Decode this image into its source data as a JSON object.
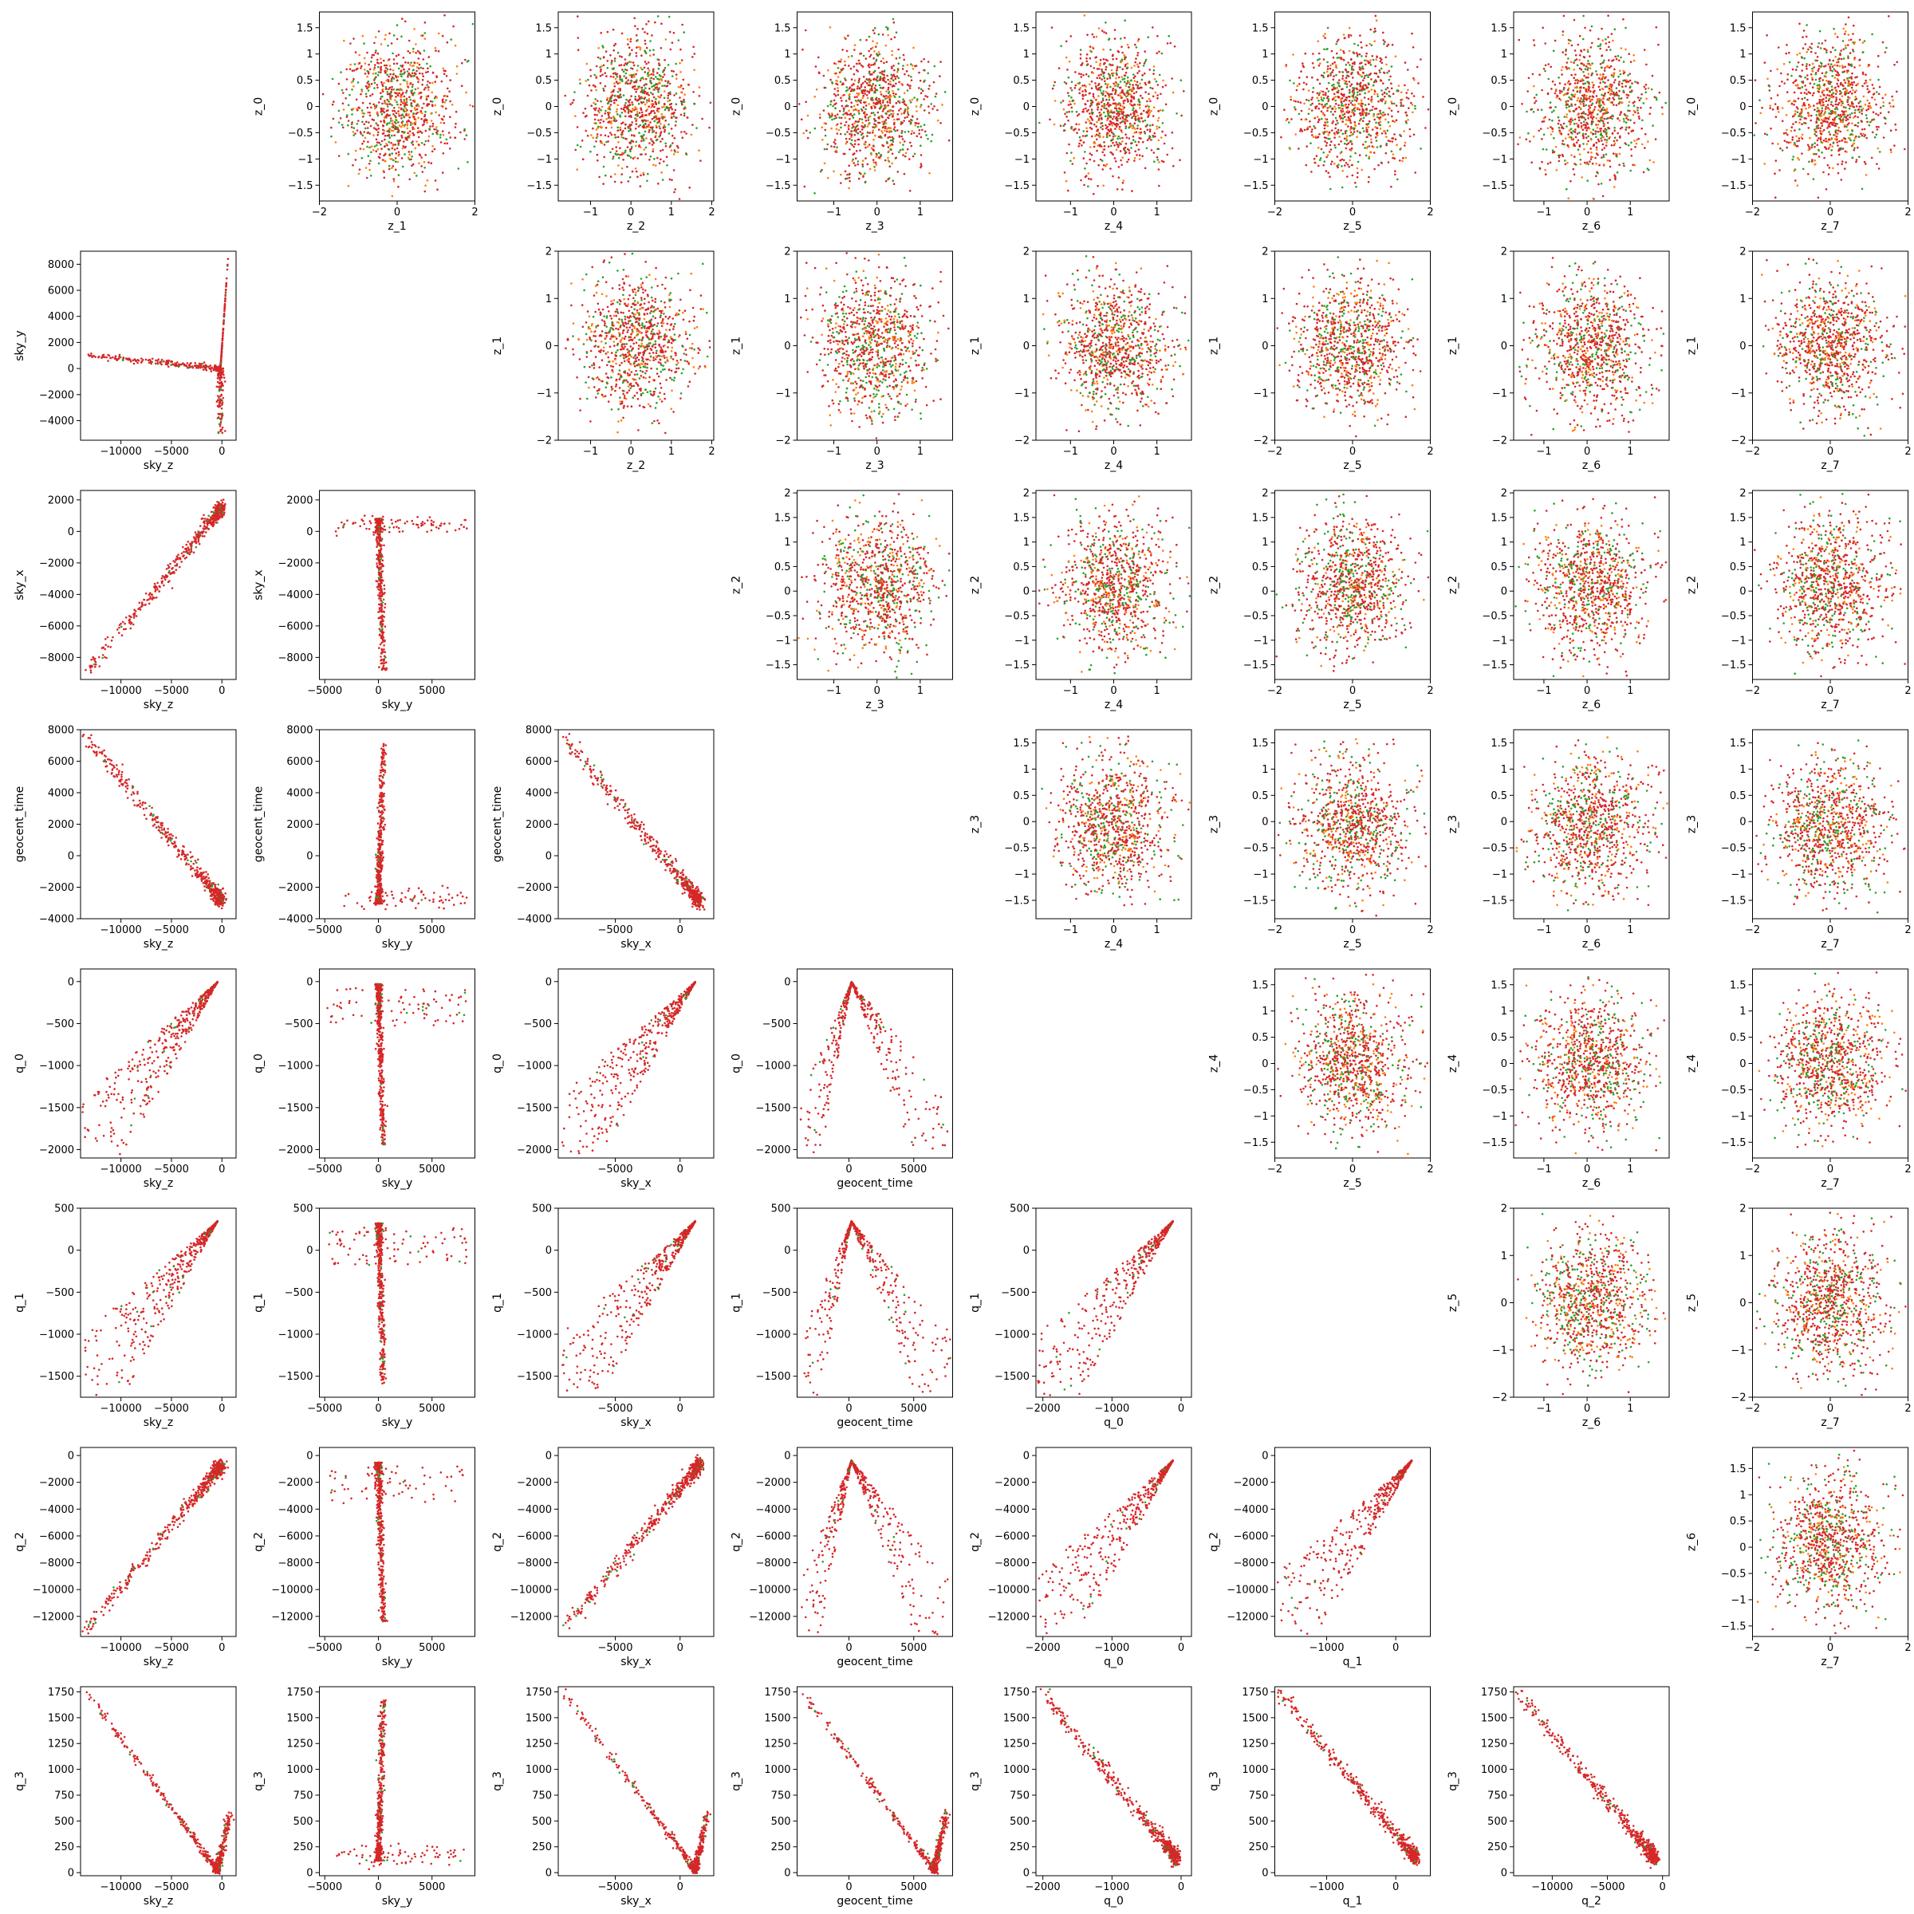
{
  "chart_data": {
    "type": "scatter",
    "layout": "pair-grid 8x8",
    "grid": false,
    "legend": "none",
    "colors": {
      "points_a": "#d62728",
      "points_b": "#2ca02c",
      "points_c": "#ff7f0e",
      "frame": "#000000"
    },
    "variables": {
      "sky_z": {
        "label": "sky_z",
        "ticks": [
          -10000,
          -5000,
          0
        ],
        "range": [
          -14000,
          1400
        ]
      },
      "sky_y": {
        "label": "sky_y",
        "ticks": [
          -5000,
          0,
          5000
        ],
        "range": [
          -5500,
          9000
        ]
      },
      "sky_x": {
        "label": "sky_x",
        "ticks": [
          -5000,
          0
        ],
        "range": [
          -9400,
          2600
        ]
      },
      "geocent_time": {
        "label": "geocent_time",
        "ticks": [
          0,
          5000
        ],
        "range": [
          -4000,
          8000
        ]
      },
      "q_0": {
        "label": "q_0",
        "ticks": [
          -2000,
          -1000,
          0
        ],
        "range": [
          -2100,
          150
        ]
      },
      "q_1": {
        "label": "q_1",
        "ticks": [
          -1000,
          0
        ],
        "range": [
          -1750,
          500
        ]
      },
      "q_2": {
        "label": "q_2",
        "ticks": [
          -10000,
          -5000,
          0
        ],
        "range": [
          -13500,
          600
        ]
      },
      "q_3": {
        "label": "q_3",
        "ticks": [
          0,
          250,
          500,
          750,
          1000,
          1250,
          1500,
          1750
        ],
        "range": [
          -30,
          1800
        ]
      },
      "z_0": {
        "label": "z_0",
        "ticks": [
          -1.5,
          -1.0,
          -0.5,
          0.0,
          0.5,
          1.0,
          1.5
        ],
        "range": [
          -1.8,
          1.8
        ]
      },
      "z_1": {
        "label": "z_1",
        "ticks": [
          -2,
          -1,
          0,
          1,
          2
        ],
        "range": [
          -2.0,
          2.0
        ]
      },
      "z_2": {
        "label": "z_2",
        "ticks": [
          -1,
          0,
          1,
          2
        ],
        "range": [
          -1.8,
          2.05
        ]
      },
      "z_3": {
        "label": "z_3",
        "ticks": [
          -1,
          0,
          1
        ],
        "range": [
          -1.85,
          1.75
        ]
      },
      "z_4": {
        "label": "z_4",
        "ticks": [
          -1,
          0,
          1
        ],
        "range": [
          -1.8,
          1.8
        ]
      },
      "z_5": {
        "label": "z_5",
        "ticks": [
          -2,
          -1,
          0,
          1,
          2
        ],
        "range": [
          -2.0,
          2.0
        ]
      },
      "z_6": {
        "label": "z_6",
        "ticks": [
          -1,
          0,
          1
        ],
        "range": [
          -1.7,
          1.9
        ]
      },
      "z_7": {
        "label": "z_7",
        "ticks": [
          -2,
          -1,
          0,
          1,
          2
        ],
        "range": [
          -2.0,
          2.0
        ]
      }
    },
    "x_ticks_override": {
      "z_1": [
        -2,
        0,
        2
      ],
      "z_2": [
        -1,
        0,
        1,
        2
      ],
      "z_5": [
        -2,
        0,
        2
      ],
      "z_7": [
        -2,
        0,
        2
      ]
    },
    "y_ticks_override": {
      "z_1": [
        -2,
        -1,
        0,
        1,
        2
      ],
      "z_2": [
        -1.5,
        -1.0,
        -0.5,
        0.0,
        0.5,
        1.0,
        1.5,
        2.0
      ],
      "z_3": [
        -1.5,
        -1.0,
        -0.5,
        0.0,
        0.5,
        1.0,
        1.5
      ],
      "z_4": [
        -1.5,
        -1.0,
        -0.5,
        0.0,
        0.5,
        1.0,
        1.5
      ],
      "z_5": [
        -2,
        -1,
        0,
        1,
        2
      ],
      "z_6": [
        -1.5,
        -1.0,
        -0.5,
        0.0,
        0.5,
        1.0,
        1.5
      ],
      "sky_y": [
        -4000,
        -2000,
        0,
        2000,
        4000,
        6000,
        8000
      ],
      "sky_x": [
        -8000,
        -6000,
        -4000,
        -2000,
        0,
        2000
      ],
      "geocent_time": [
        -4000,
        -2000,
        0,
        2000,
        4000,
        6000,
        8000
      ],
      "q_0": [
        -2000,
        -1500,
        -1000,
        -500,
        0
      ],
      "q_1": [
        -1500,
        -1000,
        -500,
        0,
        500
      ],
      "q_2": [
        -12000,
        -10000,
        -8000,
        -6000,
        -4000,
        -2000,
        0
      ],
      "q_3": [
        0,
        250,
        500,
        750,
        1000,
        1250,
        1500,
        1750
      ]
    },
    "panels": [
      {
        "row": 0,
        "col": 1,
        "x": "z_1",
        "y": "z_0",
        "pattern": "blob"
      },
      {
        "row": 0,
        "col": 2,
        "x": "z_2",
        "y": "z_0",
        "pattern": "blob"
      },
      {
        "row": 0,
        "col": 3,
        "x": "z_3",
        "y": "z_0",
        "pattern": "blob"
      },
      {
        "row": 0,
        "col": 4,
        "x": "z_4",
        "y": "z_0",
        "pattern": "blob"
      },
      {
        "row": 0,
        "col": 5,
        "x": "z_5",
        "y": "z_0",
        "pattern": "blob"
      },
      {
        "row": 0,
        "col": 6,
        "x": "z_6",
        "y": "z_0",
        "pattern": "blob"
      },
      {
        "row": 0,
        "col": 7,
        "x": "z_7",
        "y": "z_0",
        "pattern": "blob"
      },
      {
        "row": 1,
        "col": 0,
        "x": "sky_z",
        "y": "sky_y",
        "pattern": "skyz_skyy"
      },
      {
        "row": 1,
        "col": 2,
        "x": "z_2",
        "y": "z_1",
        "pattern": "blob"
      },
      {
        "row": 1,
        "col": 3,
        "x": "z_3",
        "y": "z_1",
        "pattern": "blob"
      },
      {
        "row": 1,
        "col": 4,
        "x": "z_4",
        "y": "z_1",
        "pattern": "blob"
      },
      {
        "row": 1,
        "col": 5,
        "x": "z_5",
        "y": "z_1",
        "pattern": "blob"
      },
      {
        "row": 1,
        "col": 6,
        "x": "z_6",
        "y": "z_1",
        "pattern": "blob"
      },
      {
        "row": 1,
        "col": 7,
        "x": "z_7",
        "y": "z_1",
        "pattern": "blob"
      },
      {
        "row": 2,
        "col": 0,
        "x": "sky_z",
        "y": "sky_x",
        "pattern": "line_pos"
      },
      {
        "row": 2,
        "col": 1,
        "x": "sky_y",
        "y": "sky_x",
        "pattern": "skyy_vert"
      },
      {
        "row": 2,
        "col": 3,
        "x": "z_3",
        "y": "z_2",
        "pattern": "blob"
      },
      {
        "row": 2,
        "col": 4,
        "x": "z_4",
        "y": "z_2",
        "pattern": "blob"
      },
      {
        "row": 2,
        "col": 5,
        "x": "z_5",
        "y": "z_2",
        "pattern": "blob"
      },
      {
        "row": 2,
        "col": 6,
        "x": "z_6",
        "y": "z_2",
        "pattern": "blob"
      },
      {
        "row": 2,
        "col": 7,
        "x": "z_7",
        "y": "z_2",
        "pattern": "blob"
      },
      {
        "row": 3,
        "col": 0,
        "x": "sky_z",
        "y": "geocent_time",
        "pattern": "line_neg"
      },
      {
        "row": 3,
        "col": 1,
        "x": "sky_y",
        "y": "geocent_time",
        "pattern": "skyy_vert_up"
      },
      {
        "row": 3,
        "col": 2,
        "x": "sky_x",
        "y": "geocent_time",
        "pattern": "line_neg"
      },
      {
        "row": 3,
        "col": 4,
        "x": "z_4",
        "y": "z_3",
        "pattern": "blob"
      },
      {
        "row": 3,
        "col": 5,
        "x": "z_5",
        "y": "z_3",
        "pattern": "blob"
      },
      {
        "row": 3,
        "col": 6,
        "x": "z_6",
        "y": "z_3",
        "pattern": "blob"
      },
      {
        "row": 3,
        "col": 7,
        "x": "z_7",
        "y": "z_3",
        "pattern": "blob"
      },
      {
        "row": 4,
        "col": 0,
        "x": "sky_z",
        "y": "q_0",
        "pattern": "fan_right"
      },
      {
        "row": 4,
        "col": 1,
        "x": "sky_y",
        "y": "q_0",
        "pattern": "skyy_vert_down"
      },
      {
        "row": 4,
        "col": 2,
        "x": "sky_x",
        "y": "q_0",
        "pattern": "fan_right"
      },
      {
        "row": 4,
        "col": 3,
        "x": "geocent_time",
        "y": "q_0",
        "pattern": "fan_left"
      },
      {
        "row": 4,
        "col": 5,
        "x": "z_5",
        "y": "z_4",
        "pattern": "blob"
      },
      {
        "row": 4,
        "col": 6,
        "x": "z_6",
        "y": "z_4",
        "pattern": "blob"
      },
      {
        "row": 4,
        "col": 7,
        "x": "z_7",
        "y": "z_4",
        "pattern": "blob"
      },
      {
        "row": 5,
        "col": 0,
        "x": "sky_z",
        "y": "q_1",
        "pattern": "fan_right"
      },
      {
        "row": 5,
        "col": 1,
        "x": "sky_y",
        "y": "q_1",
        "pattern": "skyy_vert_down"
      },
      {
        "row": 5,
        "col": 2,
        "x": "sky_x",
        "y": "q_1",
        "pattern": "fan_right"
      },
      {
        "row": 5,
        "col": 3,
        "x": "geocent_time",
        "y": "q_1",
        "pattern": "fan_left"
      },
      {
        "row": 5,
        "col": 4,
        "x": "q_0",
        "y": "q_1",
        "pattern": "fan_right"
      },
      {
        "row": 5,
        "col": 6,
        "x": "z_6",
        "y": "z_5",
        "pattern": "blob"
      },
      {
        "row": 5,
        "col": 7,
        "x": "z_7",
        "y": "z_5",
        "pattern": "blob"
      },
      {
        "row": 6,
        "col": 0,
        "x": "sky_z",
        "y": "q_2",
        "pattern": "line_pos"
      },
      {
        "row": 6,
        "col": 1,
        "x": "sky_y",
        "y": "q_2",
        "pattern": "skyy_vert_down"
      },
      {
        "row": 6,
        "col": 2,
        "x": "sky_x",
        "y": "q_2",
        "pattern": "line_pos"
      },
      {
        "row": 6,
        "col": 3,
        "x": "geocent_time",
        "y": "q_2",
        "pattern": "fan_left"
      },
      {
        "row": 6,
        "col": 4,
        "x": "q_0",
        "y": "q_2",
        "pattern": "fan_right"
      },
      {
        "row": 6,
        "col": 5,
        "x": "q_1",
        "y": "q_2",
        "pattern": "fan_right"
      },
      {
        "row": 6,
        "col": 7,
        "x": "z_7",
        "y": "z_6",
        "pattern": "blob"
      },
      {
        "row": 7,
        "col": 0,
        "x": "sky_z",
        "y": "q_3",
        "pattern": "v_shape"
      },
      {
        "row": 7,
        "col": 1,
        "x": "sky_y",
        "y": "q_3",
        "pattern": "skyy_vert_up"
      },
      {
        "row": 7,
        "col": 2,
        "x": "sky_x",
        "y": "q_3",
        "pattern": "v_shape"
      },
      {
        "row": 7,
        "col": 3,
        "x": "geocent_time",
        "y": "q_3",
        "pattern": "v_shape"
      },
      {
        "row": 7,
        "col": 4,
        "x": "q_0",
        "y": "q_3",
        "pattern": "line_neg"
      },
      {
        "row": 7,
        "col": 5,
        "x": "q_1",
        "y": "q_3",
        "pattern": "line_neg"
      },
      {
        "row": 7,
        "col": 6,
        "x": "q_2",
        "y": "q_3",
        "pattern": "line_neg"
      }
    ]
  }
}
